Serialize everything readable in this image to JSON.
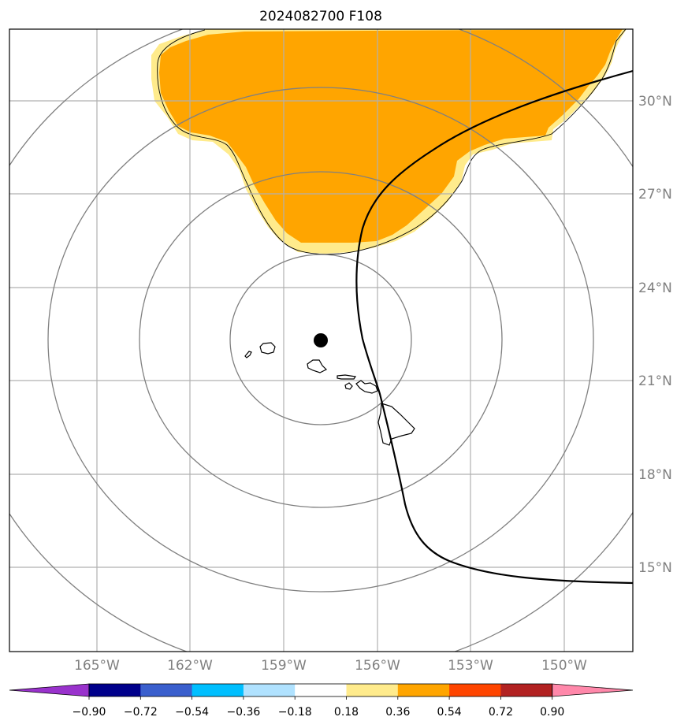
{
  "title": "2024082700 F108",
  "map": {
    "lon_labels": [
      "165°W",
      "162°W",
      "159°W",
      "156°W",
      "153°W",
      "150°W"
    ],
    "lat_labels": [
      "30°N",
      "27°N",
      "24°N",
      "21°N",
      "18°N",
      "15°N"
    ],
    "center_marker": {
      "lon": -157.8,
      "lat": 22.3
    },
    "range_rings_count": 4,
    "fill_color": "#ffa500",
    "edge_color": "#ffeb8c"
  },
  "colorbar": {
    "ticks": [
      "−0.90",
      "−0.72",
      "−0.54",
      "−0.36",
      "−0.18",
      "0.18",
      "0.36",
      "0.54",
      "0.72",
      "0.90"
    ],
    "colors": [
      "#9932cc",
      "#00008b",
      "#3a5fcd",
      "#00bfff",
      "#b0e2ff",
      "#ffffff",
      "#ffeb8c",
      "#ffa500",
      "#ff4500",
      "#b22222",
      "#ff88aa"
    ]
  }
}
